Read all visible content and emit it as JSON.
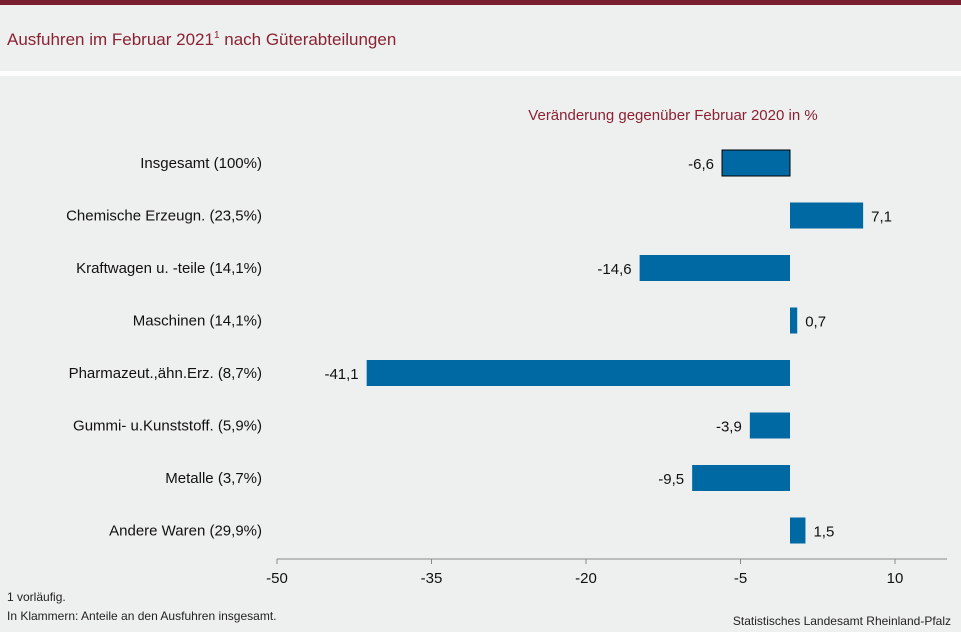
{
  "title": "Ausfuhren im Februar 2021",
  "title_footnote_mark": "1",
  "footnotes": {
    "line1": "1 vorläufig.",
    "line2": "In Klammern: Anteile an den Ausfuhren insgesamt."
  },
  "source": "Statistisches Landesamt Rheinland-Pfalz",
  "title_suffix": "nach Güterabteilungen",
  "colors": {
    "bar": "#0069a3",
    "highlight_bar": "#0069a3",
    "accent": "#8a2233"
  },
  "chart_data": {
    "type": "bar",
    "orientation": "horizontal",
    "subtitle": "Veränderung  gegenüber Februar 2020 in %",
    "categories": [
      "Insgesamt (100%)",
      "Chemische Erzeugn. (23,5%)",
      "Kraftwagen u. -teile (14,1%)",
      "Maschinen (14,1%)",
      "Pharmazeut.,ähn.Erz. (8,7%)",
      "Gummi- u.Kunststoff. (5,9%)",
      "Metalle (3,7%)",
      "Andere Waren (29,9%)"
    ],
    "values": [
      -6.6,
      7.1,
      -14.6,
      0.7,
      -41.1,
      -3.9,
      -9.5,
      1.5
    ],
    "value_labels": [
      "-6,6",
      "7,1",
      "-14,6",
      "0,7",
      "-41,1",
      "-3,9",
      "-9,5",
      "1,5"
    ],
    "highlight_index": 0,
    "xlim": [
      -50,
      13
    ],
    "xticks": [
      -50,
      -35,
      -20,
      -5,
      10
    ],
    "xtick_labels": [
      "-50",
      "-35",
      "-20",
      "-5",
      "10"
    ],
    "grid": false
  }
}
